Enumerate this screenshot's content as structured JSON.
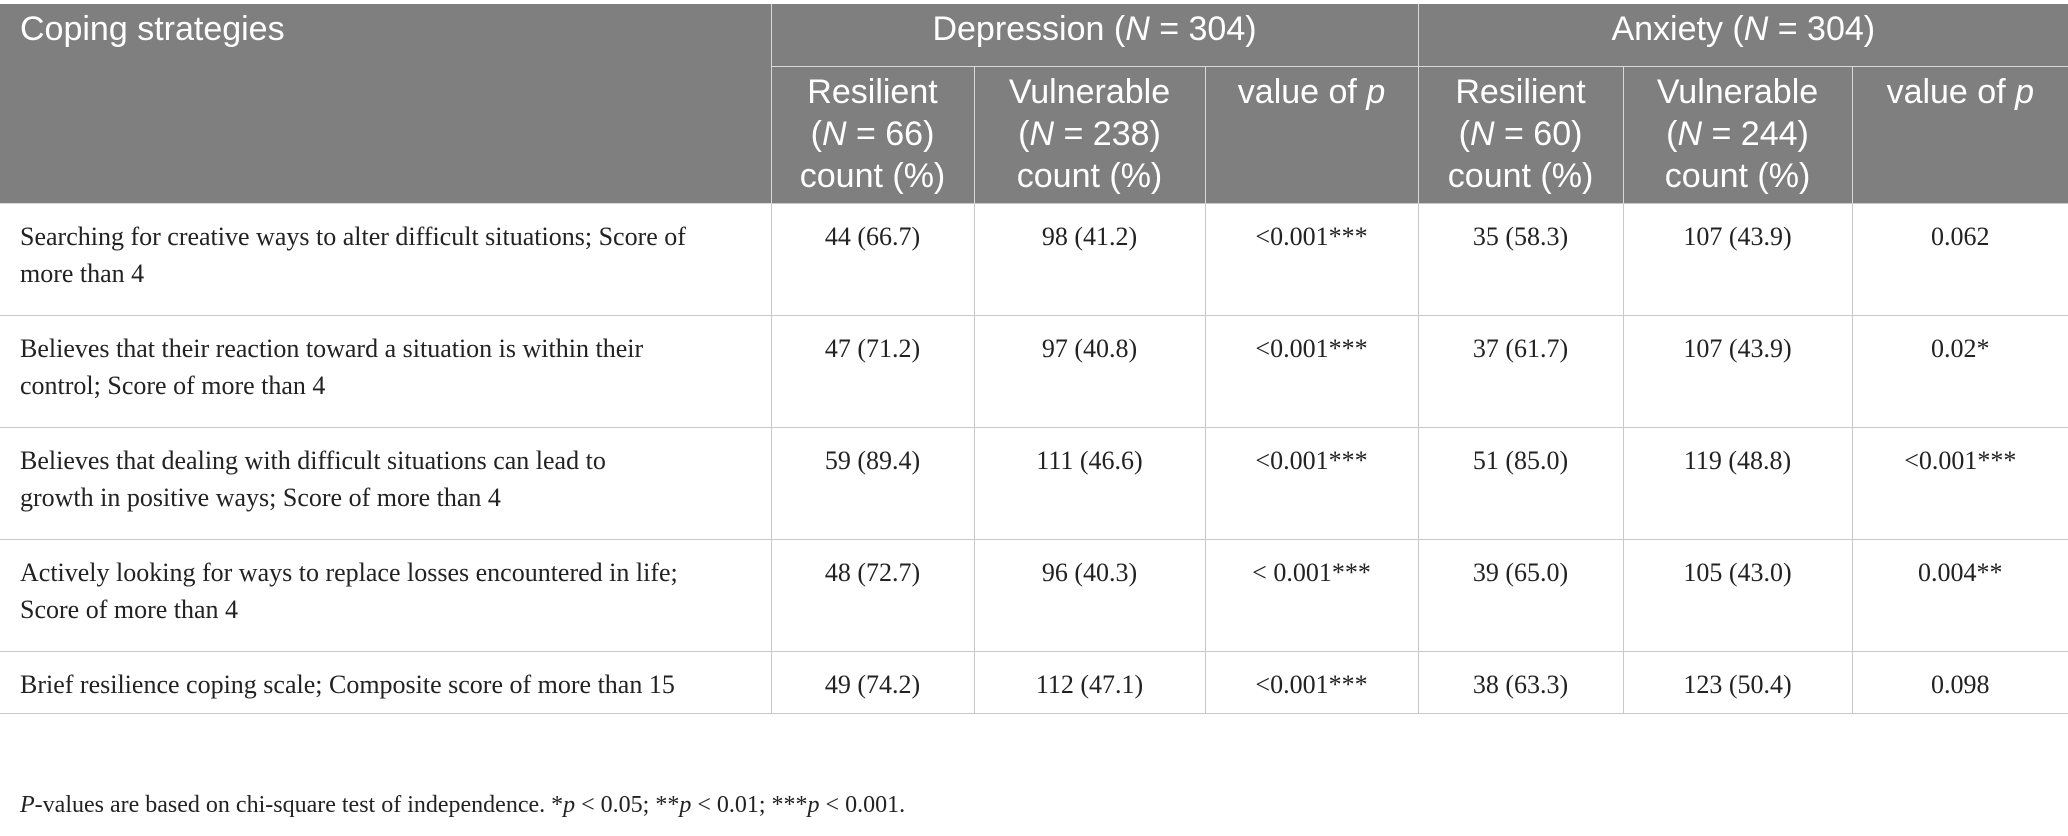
{
  "header": {
    "coping": "Coping strategies",
    "depression_prefix": "Depression (",
    "depression_n": "N",
    "depression_suffix": " = 304)",
    "anxiety_prefix": "Anxiety (",
    "anxiety_n": "N",
    "anxiety_suffix": " = 304)",
    "dep_resilient_l1": "Resilient",
    "dep_resilient_l2a": "(",
    "dep_resilient_n": "N",
    "dep_resilient_l2b": " = 66)",
    "dep_resilient_l3": "count (%)",
    "dep_vulnerable_l1": "Vulnerable",
    "dep_vulnerable_l2a": "(",
    "dep_vulnerable_n": "N",
    "dep_vulnerable_l2b": " = 238)",
    "dep_vulnerable_l3": "count (%)",
    "dep_p_a": "value of ",
    "dep_p_b": "p",
    "anx_resilient_l1": "Resilient",
    "anx_resilient_l2a": "(",
    "anx_resilient_n": "N",
    "anx_resilient_l2b": " = 60)",
    "anx_resilient_l3": "count (%)",
    "anx_vulnerable_l1": "Vulnerable",
    "anx_vulnerable_l2a": "(",
    "anx_vulnerable_n": "N",
    "anx_vulnerable_l2b": " = 244)",
    "anx_vulnerable_l3": "count (%)",
    "anx_p_a": "value of ",
    "anx_p_b": "p"
  },
  "rows": [
    {
      "label_l1": "Searching for creative ways to alter difficult situations; Score of",
      "label_l2": "more than 4",
      "dep_res": "44 (66.7)",
      "dep_vul": "98 (41.2)",
      "dep_p": "<0.001***",
      "anx_res": "35 (58.3)",
      "anx_vul": "107 (43.9)",
      "anx_p": "0.062"
    },
    {
      "label_l1": "Believes that their reaction toward a situation is within their",
      "label_l2": "control; Score of more than 4",
      "dep_res": "47 (71.2)",
      "dep_vul": "97 (40.8)",
      "dep_p": "<0.001***",
      "anx_res": "37 (61.7)",
      "anx_vul": "107 (43.9)",
      "anx_p": "0.02*"
    },
    {
      "label_l1": "Believes that dealing with difficult situations can lead to",
      "label_l2": "growth in positive ways; Score of more than 4",
      "dep_res": "59 (89.4)",
      "dep_vul": "111 (46.6)",
      "dep_p": "<0.001***",
      "anx_res": "51 (85.0)",
      "anx_vul": "119 (48.8)",
      "anx_p": "<0.001***"
    },
    {
      "label_l1": "Actively looking for ways to replace losses encountered in life;",
      "label_l2": "Score of more than 4",
      "dep_res": "48 (72.7)",
      "dep_vul": "96 (40.3)",
      "dep_p": "< 0.001***",
      "anx_res": "39 (65.0)",
      "anx_vul": "105 (43.0)",
      "anx_p": "0.004**"
    },
    {
      "label_l1": "Brief resilience coping scale; Composite score of more than 15",
      "label_l2": "",
      "dep_res": "49 (74.2)",
      "dep_vul": "112 (47.1)",
      "dep_p": "<0.001***",
      "anx_res": "38 (63.3)",
      "anx_vul": "123 (50.4)",
      "anx_p": "0.098"
    }
  ],
  "footnote": {
    "p1": "P",
    "t1": "-values are based on chi-square test of independence. *",
    "p2": "p",
    "t2": " < 0.05; **",
    "p3": "p",
    "t3": " < 0.01; ***",
    "p4": "p",
    "t4": " < 0.001."
  }
}
